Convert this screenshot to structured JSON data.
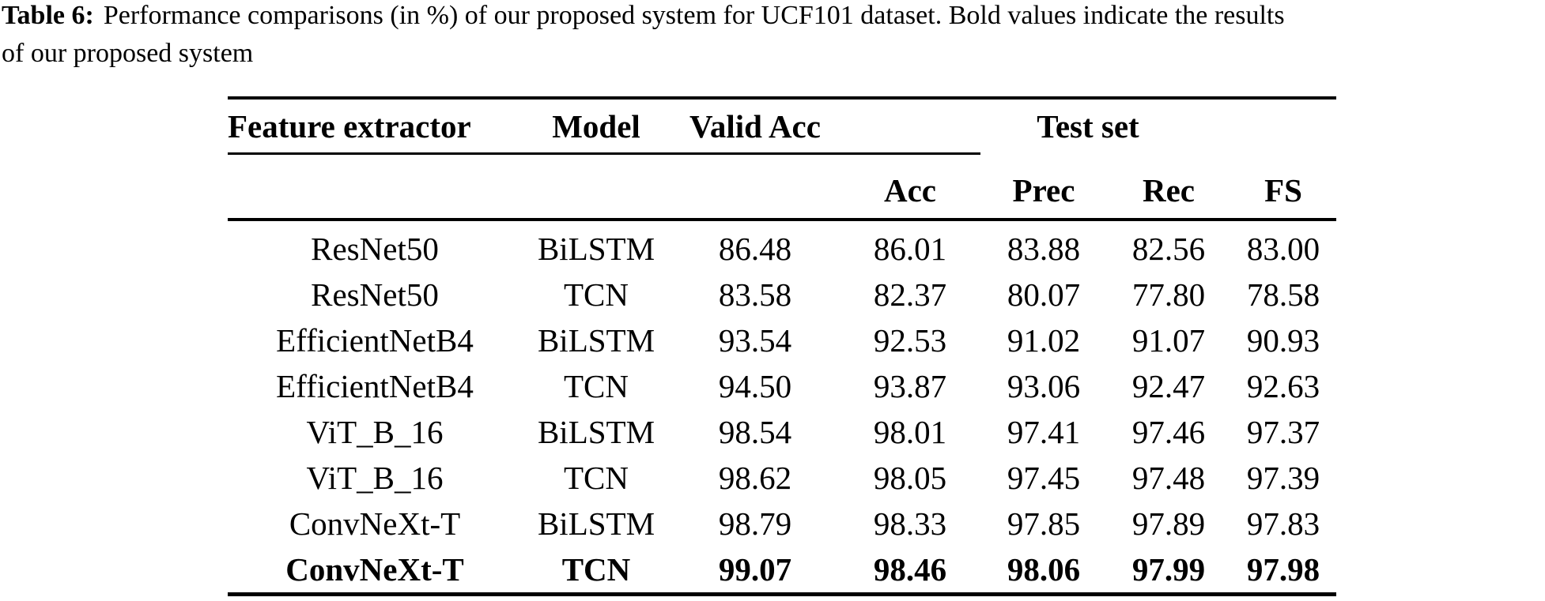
{
  "caption": {
    "label": "Table 6:",
    "text": "Performance comparisons (in %) of our proposed system for UCF101 dataset. Bold values indicate the results",
    "text_line2": "of our proposed system"
  },
  "table": {
    "header": {
      "feature_extractor": "Feature extractor",
      "model": "Model",
      "valid_acc": "Valid Acc",
      "test_set": "Test set",
      "sub": [
        "Acc",
        "Prec",
        "Rec",
        "FS"
      ]
    },
    "rows": [
      {
        "feature_extractor": "ResNet50",
        "model": "BiLSTM",
        "valid_acc": "86.48",
        "acc": "86.01",
        "prec": "83.88",
        "rec": "82.56",
        "fs": "83.00",
        "bold": false
      },
      {
        "feature_extractor": "ResNet50",
        "model": "TCN",
        "valid_acc": "83.58",
        "acc": "82.37",
        "prec": "80.07",
        "rec": "77.80",
        "fs": "78.58",
        "bold": false
      },
      {
        "feature_extractor": "EfficientNetB4",
        "model": "BiLSTM",
        "valid_acc": "93.54",
        "acc": "92.53",
        "prec": "91.02",
        "rec": "91.07",
        "fs": "90.93",
        "bold": false
      },
      {
        "feature_extractor": "EfficientNetB4",
        "model": "TCN",
        "valid_acc": "94.50",
        "acc": "93.87",
        "prec": "93.06",
        "rec": "92.47",
        "fs": "92.63",
        "bold": false
      },
      {
        "feature_extractor": "ViT_B_16",
        "model": "BiLSTM",
        "valid_acc": "98.54",
        "acc": "98.01",
        "prec": "97.41",
        "rec": "97.46",
        "fs": "97.37",
        "bold": false
      },
      {
        "feature_extractor": "ViT_B_16",
        "model": "TCN",
        "valid_acc": "98.62",
        "acc": "98.05",
        "prec": "97.45",
        "rec": "97.48",
        "fs": "97.39",
        "bold": false
      },
      {
        "feature_extractor": "ConvNeXt-T",
        "model": "BiLSTM",
        "valid_acc": "98.79",
        "acc": "98.33",
        "prec": "97.85",
        "rec": "97.89",
        "fs": "97.83",
        "bold": false
      },
      {
        "feature_extractor": "ConvNeXt-T",
        "model": "TCN",
        "valid_acc": "99.07",
        "acc": "98.46",
        "prec": "98.06",
        "rec": "97.99",
        "fs": "97.98",
        "bold": true
      }
    ]
  },
  "colors": {
    "text": "#000000",
    "background": "#ffffff",
    "rule": "#000000"
  }
}
